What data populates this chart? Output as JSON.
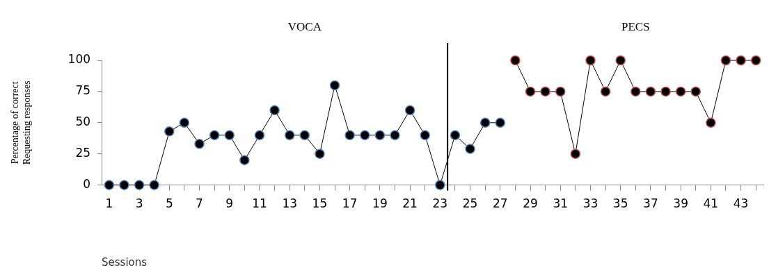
{
  "chart_data": {
    "type": "line",
    "xlabel": "Sessions",
    "ylabel": "Percentage of correct\nRequesting responses",
    "annotations": [
      "VOCA",
      "PECS"
    ],
    "xlim": [
      0.5,
      44.5
    ],
    "xticks": [
      1,
      {
        "value": 2,
        "label": null
      },
      3,
      {
        "value": 4,
        "label": null
      },
      5,
      {
        "value": 6,
        "label": null
      },
      7,
      {
        "value": 8,
        "label": null
      },
      9,
      {
        "value": 10,
        "label": null
      },
      11,
      {
        "value": 12,
        "label": null
      },
      13,
      {
        "value": 14,
        "label": null
      },
      15,
      {
        "value": 16,
        "label": null
      },
      17,
      {
        "value": 18,
        "label": null
      },
      19,
      {
        "value": 20,
        "label": null
      },
      21,
      {
        "value": 22,
        "label": null
      },
      23,
      {
        "value": 24,
        "label": null
      },
      25,
      {
        "value": 26,
        "label": null
      },
      27,
      {
        "value": 28,
        "label": null
      },
      29,
      {
        "value": 30,
        "label": null
      },
      31,
      {
        "value": 32,
        "label": null
      },
      33,
      {
        "value": 34,
        "label": null
      },
      35,
      {
        "value": 36,
        "label": null
      },
      37,
      {
        "value": 38,
        "label": null
      },
      39,
      {
        "value": 40,
        "label": null
      },
      41,
      {
        "value": 42,
        "label": null
      },
      43,
      {
        "value": 44,
        "label": null
      }
    ],
    "ylim": [
      0,
      100
    ],
    "yticks": [
      0,
      25,
      50,
      75,
      100
    ],
    "grid": false,
    "legend": false,
    "marker": "circle",
    "line_style": "solid",
    "series": [
      {
        "color": "#4f81bd",
        "x": [
          1,
          2,
          3,
          4,
          5,
          6,
          7,
          8,
          9,
          10,
          11,
          12,
          13,
          14,
          15,
          16,
          17,
          18,
          19,
          20,
          21,
          22,
          23,
          24,
          25,
          26,
          27
        ],
        "values": [
          0,
          0,
          0,
          0,
          43,
          50,
          33,
          40,
          40,
          20,
          40,
          60,
          40,
          40,
          25,
          80,
          40,
          40,
          40,
          40,
          60,
          40,
          0,
          40,
          29,
          50,
          50
        ]
      },
      {
        "color": "#c0504d",
        "x": [
          28,
          29,
          30,
          31,
          32,
          33,
          34,
          35,
          36,
          37,
          38,
          39,
          40,
          41,
          42,
          43,
          44
        ],
        "values": [
          100,
          75,
          75,
          75,
          25,
          100,
          75,
          100,
          75,
          75,
          75,
          75,
          75,
          50,
          100,
          100,
          100
        ]
      }
    ],
    "ref_lines": [
      {
        "axis": "x",
        "value": 23.5,
        "color": "#000000",
        "line_style": "solid"
      }
    ]
  }
}
